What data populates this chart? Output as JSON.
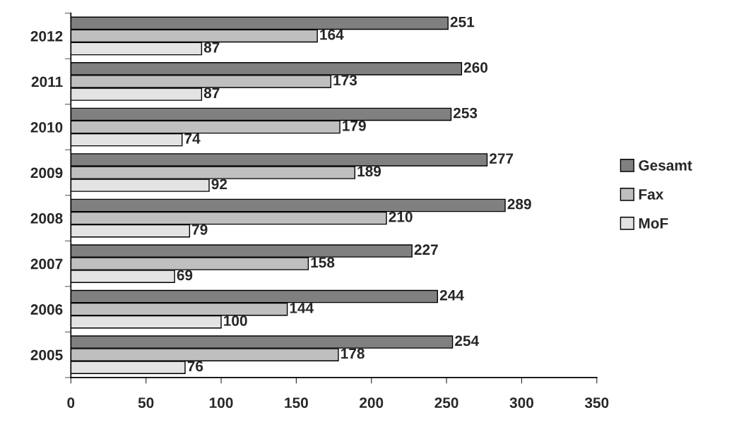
{
  "chart_data": {
    "type": "bar",
    "orientation": "horizontal",
    "categories": [
      "2012",
      "2011",
      "2010",
      "2009",
      "2008",
      "2007",
      "2006",
      "2005"
    ],
    "series": [
      {
        "name": "Gesamt",
        "color": "#808080",
        "values": [
          251,
          260,
          253,
          277,
          289,
          227,
          244,
          254
        ]
      },
      {
        "name": "Fax",
        "color": "#bfbfbf",
        "values": [
          164,
          173,
          179,
          189,
          210,
          158,
          144,
          178
        ]
      },
      {
        "name": "MoF",
        "color": "#e3e3e3",
        "values": [
          87,
          87,
          74,
          92,
          79,
          69,
          100,
          76
        ]
      }
    ],
    "xlim": [
      0,
      350
    ],
    "xticks": [
      0,
      50,
      100,
      150,
      200,
      250,
      300,
      350
    ],
    "data_labels": true,
    "grid": false,
    "legend": "right"
  }
}
